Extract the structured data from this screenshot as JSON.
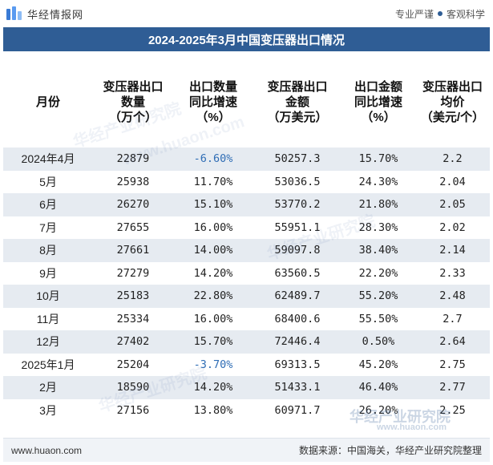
{
  "header": {
    "brand": "华经情报网",
    "slogan_left": "专业严谨",
    "slogan_right": "客观科学"
  },
  "title": "2024-2025年3月中国变压器出口情况",
  "columns": [
    {
      "label": "月份"
    },
    {
      "label": "变压器出口\n数量\n（万个）"
    },
    {
      "label": "出口数量\n同比增速\n（%）"
    },
    {
      "label": "变压器出口\n金额\n（万美元）"
    },
    {
      "label": "出口金额\n同比增速\n（%）"
    },
    {
      "label": "变压器出口\n均价\n（美元/个）"
    }
  ],
  "rows": [
    {
      "month": "2024年4月",
      "qty": "22879",
      "qty_yoy": "-6.60%",
      "amount": "50257.3",
      "amount_yoy": "15.70%",
      "price": "2.2"
    },
    {
      "month": "5月",
      "qty": "25938",
      "qty_yoy": "11.70%",
      "amount": "53036.5",
      "amount_yoy": "24.30%",
      "price": "2.04"
    },
    {
      "month": "6月",
      "qty": "26270",
      "qty_yoy": "15.10%",
      "amount": "53770.2",
      "amount_yoy": "21.80%",
      "price": "2.05"
    },
    {
      "month": "7月",
      "qty": "27655",
      "qty_yoy": "16.00%",
      "amount": "55951.1",
      "amount_yoy": "28.30%",
      "price": "2.02"
    },
    {
      "month": "8月",
      "qty": "27661",
      "qty_yoy": "14.00%",
      "amount": "59097.8",
      "amount_yoy": "38.40%",
      "price": "2.14"
    },
    {
      "month": "9月",
      "qty": "27279",
      "qty_yoy": "14.20%",
      "amount": "63560.5",
      "amount_yoy": "22.20%",
      "price": "2.33"
    },
    {
      "month": "10月",
      "qty": "25183",
      "qty_yoy": "22.80%",
      "amount": "62489.7",
      "amount_yoy": "55.20%",
      "price": "2.48"
    },
    {
      "month": "11月",
      "qty": "25334",
      "qty_yoy": "16.00%",
      "amount": "68400.6",
      "amount_yoy": "55.50%",
      "price": "2.7"
    },
    {
      "month": "12月",
      "qty": "27402",
      "qty_yoy": "15.70%",
      "amount": "72446.4",
      "amount_yoy": "0.50%",
      "price": "2.64"
    },
    {
      "month": "2025年1月",
      "qty": "25204",
      "qty_yoy": "-3.70%",
      "amount": "69313.5",
      "amount_yoy": "45.20%",
      "price": "2.75"
    },
    {
      "month": "2月",
      "qty": "18590",
      "qty_yoy": "14.20%",
      "amount": "51433.1",
      "amount_yoy": "46.40%",
      "price": "2.77"
    },
    {
      "month": "3月",
      "qty": "27156",
      "qty_yoy": "13.80%",
      "amount": "60971.7",
      "amount_yoy": "26.20%",
      "price": "2.25"
    }
  ],
  "watermarks": {
    "cn": "华经产业研究院",
    "url": "www.huaon.com"
  },
  "footer": {
    "website": "www.huaon.com",
    "source": "数据来源：中国海关，华经产业研究院整理"
  },
  "colors": {
    "accent": "#2f5d95",
    "stripe": "#e6ebf1",
    "negative": "#2f6db5"
  }
}
